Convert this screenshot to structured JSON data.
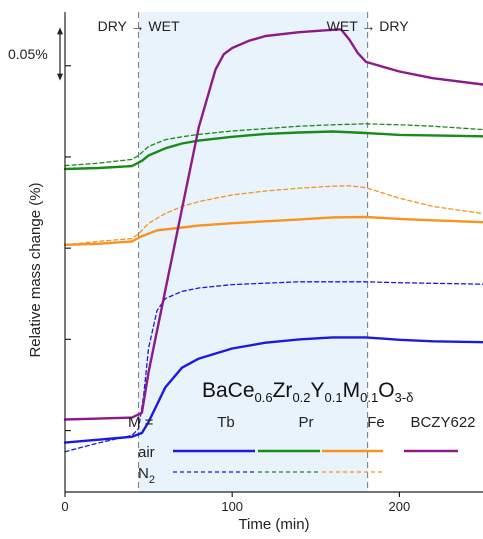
{
  "chart_data": {
    "type": "line",
    "title": "",
    "xlabel": "Time (min)",
    "ylabel": "Relative mass change (%)",
    "xlim": [
      0,
      250
    ],
    "x_ticks": [
      0,
      100,
      200
    ],
    "ylim": [
      0,
      1
    ],
    "y_ticks": [
      0.128,
      0.318,
      0.508,
      0.698,
      0.888
    ],
    "grid": false,
    "scale_bar": {
      "label": "0.05%",
      "top": 0.968,
      "bottom": 0.857
    },
    "phase_lines": [
      {
        "x": 44,
        "label": "DRY → WET",
        "parts": [
          "DRY",
          "WET"
        ]
      },
      {
        "x": 181,
        "label": "WET → DRY",
        "parts": [
          "WET",
          "DRY"
        ]
      }
    ],
    "wet_region": [
      44,
      181
    ],
    "formula": {
      "segments": [
        {
          "text": "BaCe",
          "sub": false
        },
        {
          "text": "0.6",
          "sub": true
        },
        {
          "text": "Zr",
          "sub": false
        },
        {
          "text": "0.2",
          "sub": true
        },
        {
          "text": "Y",
          "sub": false
        },
        {
          "text": "0.1",
          "sub": true
        },
        {
          "text": "M",
          "sub": false
        },
        {
          "text": "0.1",
          "sub": true
        },
        {
          "text": "O",
          "sub": false
        },
        {
          "text": "3-δ",
          "sub": true
        }
      ]
    },
    "legend": {
      "m_label": "M =",
      "columns": [
        "Tb",
        "Pr",
        "Fe",
        "BCZY622"
      ],
      "rows": [
        {
          "label": "air",
          "style": "solid"
        },
        {
          "label": "N",
          "sub": "2",
          "style": "dashed"
        }
      ]
    },
    "colors": {
      "Tb": "#1d1ae0",
      "Pr": "#1a8a1a",
      "Fe": "#f7931e",
      "BCZY622": "#8b1a8b",
      "wet_fill": "#e9f3fc"
    },
    "series": [
      {
        "material": "Tb",
        "atmosphere": "air",
        "x": [
          0,
          20,
          40,
          46,
          50,
          55,
          60,
          70,
          80,
          100,
          120,
          140,
          160,
          180,
          200,
          220,
          250
        ],
        "y": [
          0.103,
          0.109,
          0.115,
          0.123,
          0.146,
          0.182,
          0.218,
          0.259,
          0.278,
          0.299,
          0.311,
          0.318,
          0.322,
          0.322,
          0.317,
          0.314,
          0.312
        ]
      },
      {
        "material": "Tb",
        "atmosphere": "N2",
        "x": [
          0,
          20,
          40,
          44,
          47,
          50,
          55,
          60,
          70,
          80,
          100,
          140,
          180,
          200,
          250
        ],
        "y": [
          0.084,
          0.102,
          0.118,
          0.132,
          0.2,
          0.3,
          0.378,
          0.403,
          0.418,
          0.425,
          0.432,
          0.438,
          0.438,
          0.436,
          0.433
        ]
      },
      {
        "material": "Pr",
        "atmosphere": "air",
        "x": [
          0,
          20,
          40,
          46,
          50,
          60,
          70,
          80,
          100,
          120,
          140,
          160,
          180,
          200,
          220,
          250
        ],
        "y": [
          0.673,
          0.675,
          0.679,
          0.69,
          0.701,
          0.716,
          0.726,
          0.732,
          0.74,
          0.746,
          0.749,
          0.751,
          0.748,
          0.744,
          0.743,
          0.741
        ]
      },
      {
        "material": "Pr",
        "atmosphere": "N2",
        "x": [
          0,
          20,
          40,
          44,
          50,
          60,
          70,
          80,
          100,
          120,
          140,
          160,
          180,
          200,
          220,
          250
        ],
        "y": [
          0.68,
          0.685,
          0.693,
          0.701,
          0.72,
          0.734,
          0.74,
          0.745,
          0.752,
          0.757,
          0.762,
          0.765,
          0.767,
          0.765,
          0.762,
          0.755
        ]
      },
      {
        "material": "Fe",
        "atmosphere": "air",
        "x": [
          0,
          20,
          40,
          46,
          55,
          70,
          80,
          100,
          120,
          140,
          160,
          180,
          200,
          220,
          250
        ],
        "y": [
          0.515,
          0.517,
          0.522,
          0.533,
          0.545,
          0.551,
          0.555,
          0.56,
          0.564,
          0.568,
          0.572,
          0.573,
          0.569,
          0.566,
          0.562
        ]
      },
      {
        "material": "Fe",
        "atmosphere": "N2",
        "x": [
          0,
          20,
          40,
          44,
          50,
          60,
          70,
          80,
          100,
          120,
          140,
          160,
          170,
          180,
          200,
          220,
          250
        ],
        "y": [
          0.515,
          0.522,
          0.528,
          0.538,
          0.56,
          0.58,
          0.595,
          0.605,
          0.619,
          0.627,
          0.633,
          0.637,
          0.638,
          0.634,
          0.612,
          0.595,
          0.58
        ]
      },
      {
        "material": "BCZY622",
        "atmosphere": "air",
        "x": [
          0,
          20,
          40,
          46,
          50,
          60,
          70,
          80,
          90,
          95,
          100,
          110,
          120,
          140,
          160,
          165,
          170,
          175,
          180,
          200,
          220,
          250
        ],
        "y": [
          0.151,
          0.153,
          0.155,
          0.165,
          0.25,
          0.42,
          0.59,
          0.76,
          0.88,
          0.912,
          0.925,
          0.94,
          0.95,
          0.958,
          0.963,
          0.964,
          0.943,
          0.915,
          0.896,
          0.876,
          0.862,
          0.849
        ]
      }
    ]
  }
}
